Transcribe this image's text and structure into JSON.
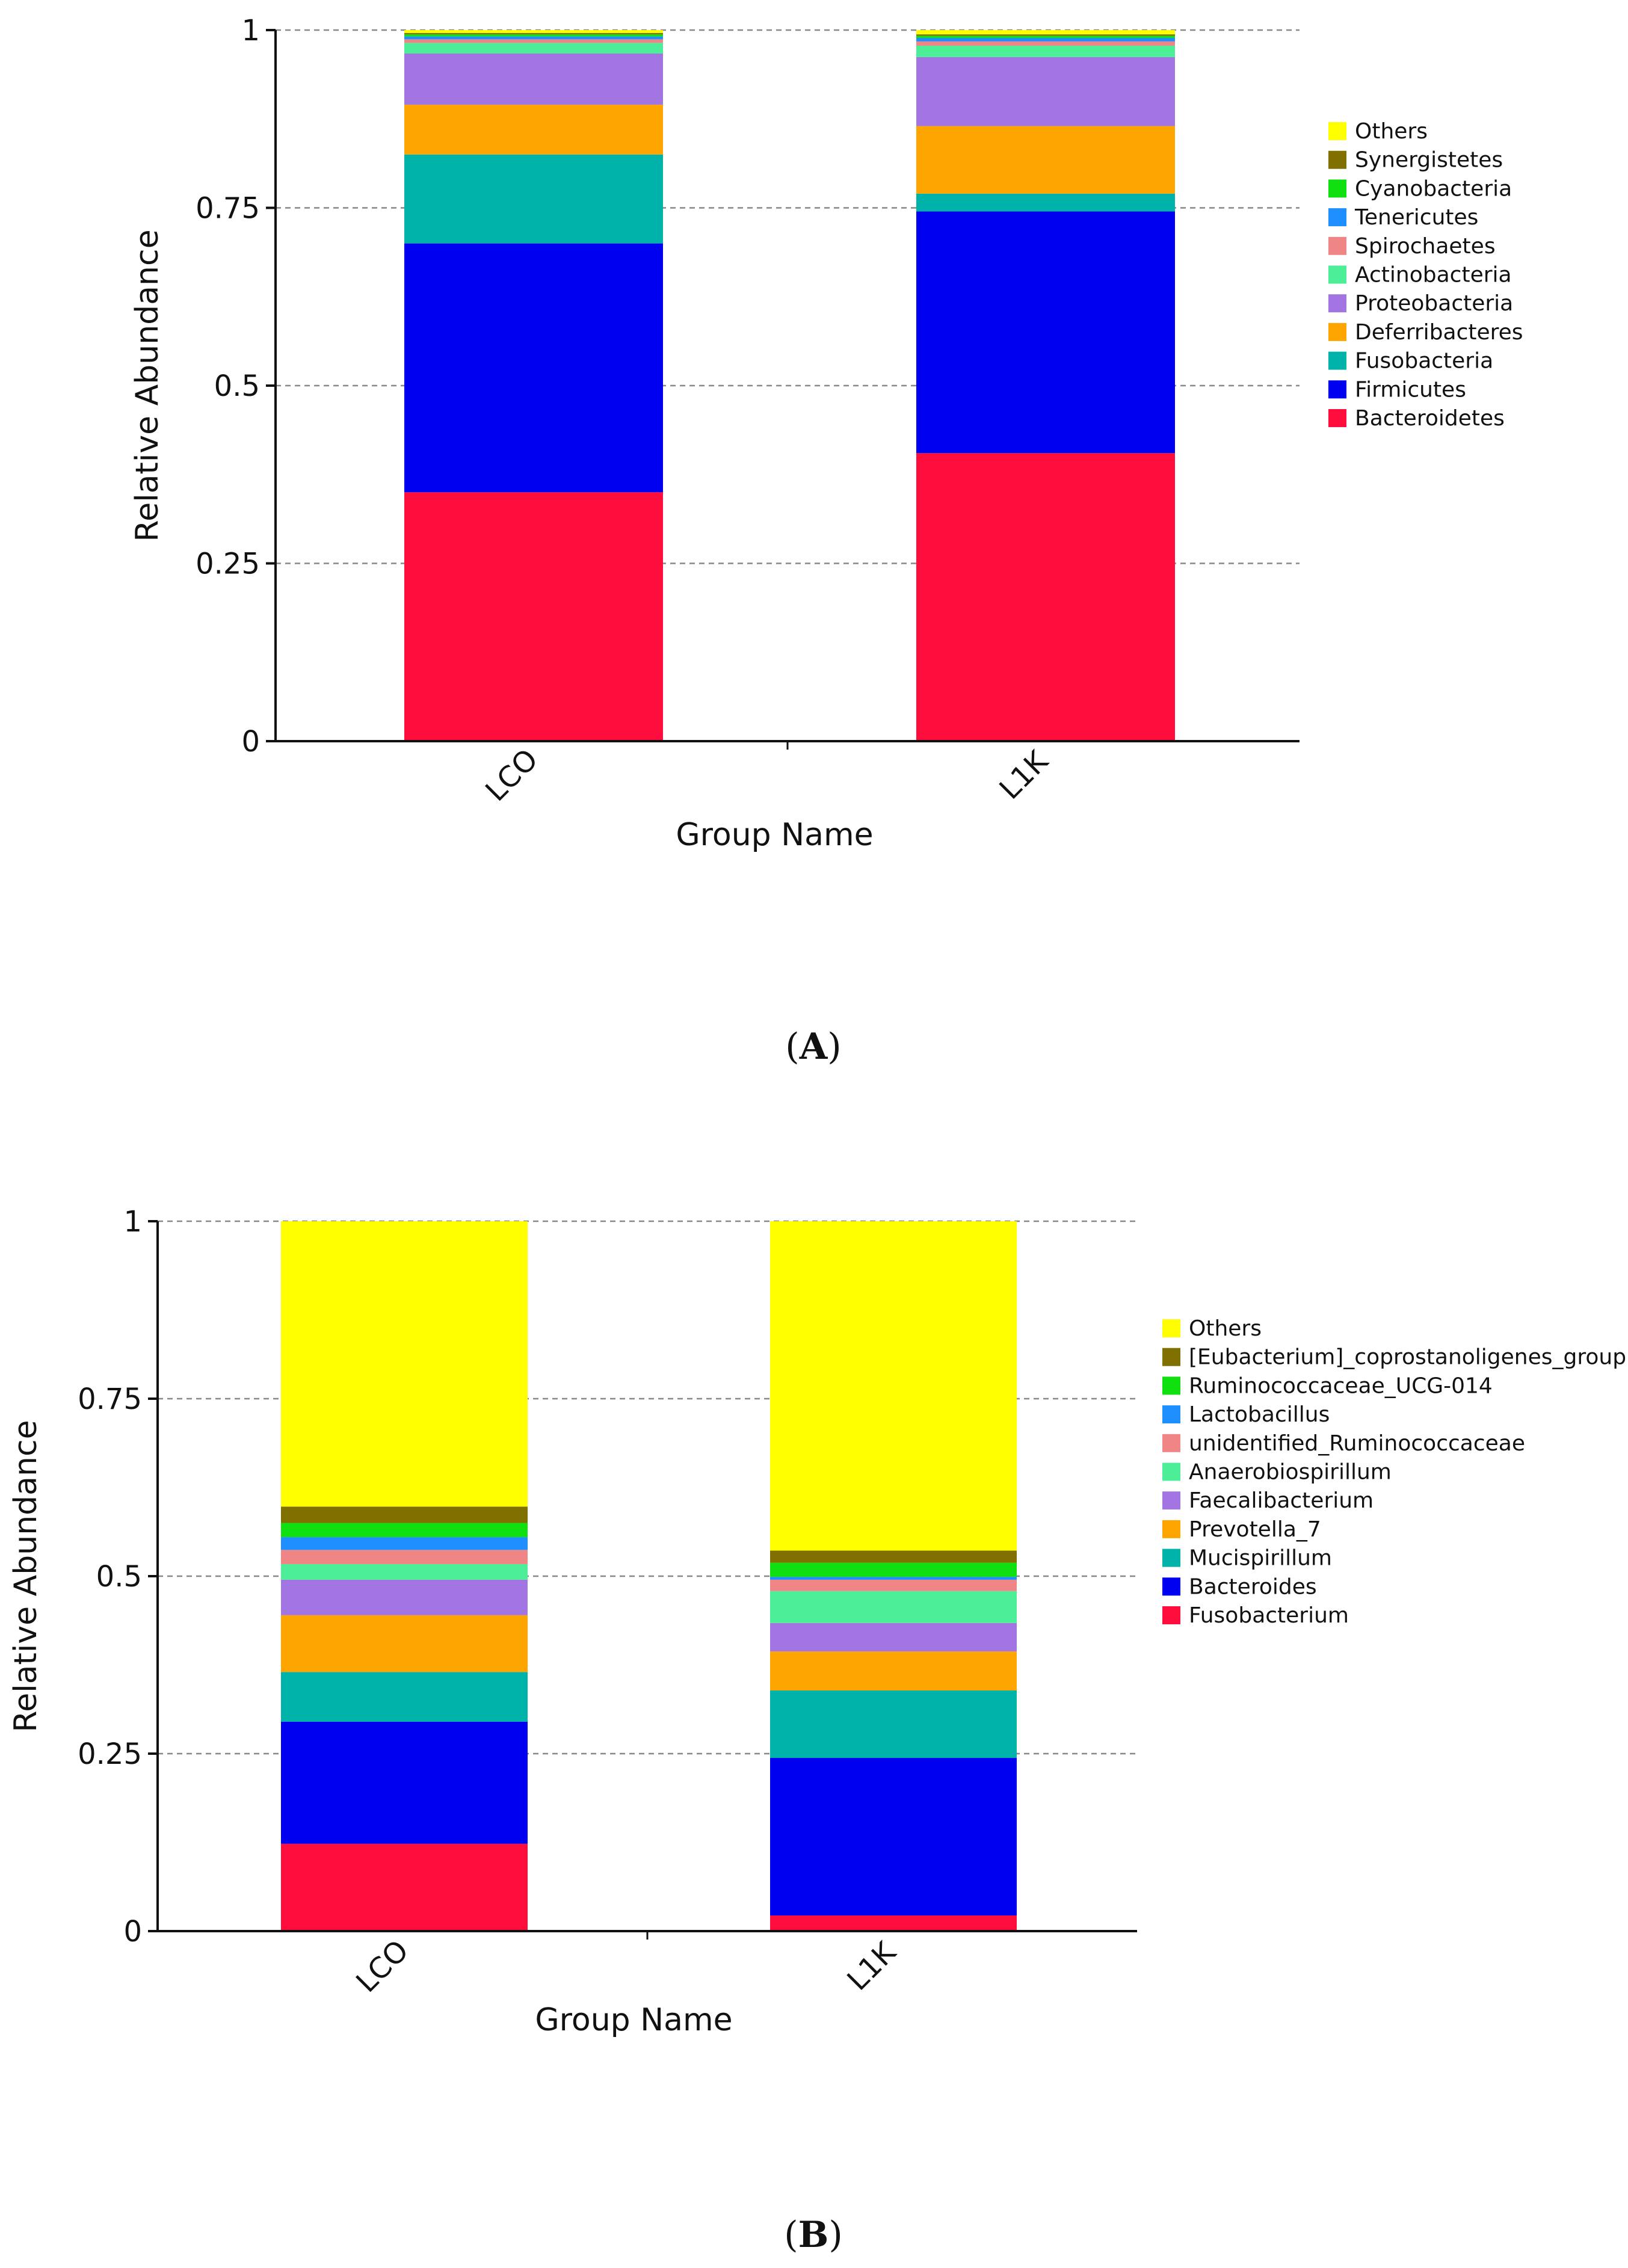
{
  "panels": [
    {
      "label": "A",
      "chart_data": {
        "type": "bar",
        "stacked": true,
        "title": "",
        "xlabel": "Group Name",
        "ylabel": "Relative Abundance",
        "ylim": [
          0,
          1
        ],
        "yticks": [
          "0",
          "0.25",
          "0.5",
          "0.75",
          "1"
        ],
        "grid": "dashed horizontal",
        "categories": [
          "LCO",
          "L1K"
        ],
        "series": [
          {
            "name": "Bacteroidetes",
            "color": "#FF0D3C",
            "values": [
              0.35,
              0.405
            ]
          },
          {
            "name": "Firmicutes",
            "color": "#0000F0",
            "values": [
              0.35,
              0.34
            ]
          },
          {
            "name": "Fusobacteria",
            "color": "#00B3AA",
            "values": [
              0.125,
              0.025
            ]
          },
          {
            "name": "Deferribacteres",
            "color": "#FFA500",
            "values": [
              0.07,
              0.095
            ]
          },
          {
            "name": "Proteobacteria",
            "color": "#A275E2",
            "values": [
              0.072,
              0.097
            ]
          },
          {
            "name": "Actinobacteria",
            "color": "#4DEE98",
            "values": [
              0.015,
              0.016
            ]
          },
          {
            "name": "Spirochaetes",
            "color": "#F08585",
            "values": [
              0.005,
              0.006
            ]
          },
          {
            "name": "Tenericutes",
            "color": "#1F8FFF",
            "values": [
              0.004,
              0.005
            ]
          },
          {
            "name": "Cyanobacteria",
            "color": "#10E010",
            "values": [
              0.003,
              0.003
            ]
          },
          {
            "name": "Synergistetes",
            "color": "#807000",
            "values": [
              0.002,
              0.002
            ]
          },
          {
            "name": "Others",
            "color": "#FFFF00",
            "values": [
              0.004,
              0.006
            ]
          }
        ]
      }
    },
    {
      "label": "B",
      "chart_data": {
        "type": "bar",
        "stacked": true,
        "title": "",
        "xlabel": "Group Name",
        "ylabel": "Relative Abundance",
        "ylim": [
          0,
          1
        ],
        "yticks": [
          "0",
          "0.25",
          "0.5",
          "0.75",
          "1"
        ],
        "grid": "dashed horizontal",
        "categories": [
          "LCO",
          "L1K"
        ],
        "series": [
          {
            "name": "Fusobacterium",
            "color": "#FF0D3C",
            "values": [
              0.123,
              0.022
            ]
          },
          {
            "name": "Bacteroides",
            "color": "#0000F0",
            "values": [
              0.172,
              0.222
            ]
          },
          {
            "name": "Mucispirillum",
            "color": "#00B3AA",
            "values": [
              0.07,
              0.095
            ]
          },
          {
            "name": "Prevotella_7",
            "color": "#FFA500",
            "values": [
              0.08,
              0.055
            ]
          },
          {
            "name": "Faecalibacterium",
            "color": "#A275E2",
            "values": [
              0.05,
              0.04
            ]
          },
          {
            "name": "Anaerobiospirillum",
            "color": "#4DEE98",
            "values": [
              0.022,
              0.045
            ]
          },
          {
            "name": "unidentified_Ruminococcaceae",
            "color": "#F08585",
            "values": [
              0.02,
              0.016
            ]
          },
          {
            "name": "Lactobacillus",
            "color": "#1F8FFF",
            "values": [
              0.018,
              0.004
            ]
          },
          {
            "name": "Ruminococcaceae_UCG-014",
            "color": "#10E010",
            "values": [
              0.02,
              0.02
            ]
          },
          {
            "name": "[Eubacterium]_coprostanoligenes_group",
            "color": "#807000",
            "values": [
              0.023,
              0.017
            ]
          },
          {
            "name": "Others",
            "color": "#FFFF00",
            "values": [
              0.402,
              0.464
            ]
          }
        ]
      }
    }
  ]
}
